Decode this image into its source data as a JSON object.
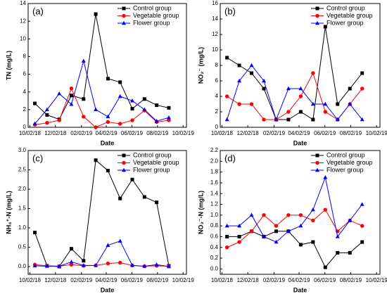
{
  "chart_data": [
    {
      "type": "line",
      "panel_label": "(a)",
      "xlabel": "Date",
      "ylabel": "TN (mg/L)",
      "legend": "upper right",
      "x": [
        "2018-10-14",
        "2018-11-12",
        "2018-12-11",
        "2019-01-09",
        "2019-02-07",
        "2019-03-08",
        "2019-04-06",
        "2019-05-05",
        "2019-06-03",
        "2019-07-02",
        "2019-07-31",
        "2019-08-29"
      ],
      "xlim": [
        "2018-09-28",
        "2019-10-10"
      ],
      "xticks": [
        {
          "value": "2018-10-02",
          "label": "10/02/18"
        },
        {
          "value": "2018-12-02",
          "label": "12/02/18"
        },
        {
          "value": "2019-02-02",
          "label": "02/02/19"
        },
        {
          "value": "2019-04-02",
          "label": "04/02/19"
        },
        {
          "value": "2019-06-02",
          "label": "06/02/19"
        },
        {
          "value": "2019-08-02",
          "label": "08/02/19"
        },
        {
          "value": "2019-10-02",
          "label": "10/02/19"
        }
      ],
      "ylim": [
        0,
        14
      ],
      "yticks": [
        0,
        2,
        4,
        6,
        8,
        10,
        12,
        14
      ],
      "series": [
        {
          "name": "Control group",
          "color": "#000000",
          "marker": "square",
          "values": [
            2.7,
            1.4,
            0.9,
            3.6,
            3.2,
            12.8,
            5.5,
            5.1,
            2.1,
            3.2,
            2.5,
            2.2
          ]
        },
        {
          "name": "Vegetable group",
          "color": "#ff0000",
          "marker": "circle",
          "values": [
            0.3,
            0.5,
            0.8,
            4.4,
            1.2,
            0.0,
            0.6,
            0.4,
            0.8,
            1.9,
            0.6,
            0.8
          ]
        },
        {
          "name": "Flower group",
          "color": "#0000ff",
          "marker": "triangle",
          "values": [
            0.4,
            2.0,
            3.8,
            2.6,
            7.5,
            2.0,
            1.2,
            3.5,
            3.0,
            2.0,
            0.7,
            1.1
          ]
        }
      ]
    },
    {
      "type": "line",
      "panel_label": "(b)",
      "xlabel": "Date",
      "ylabel": "NO₂⁻ (mg/L)",
      "legend": "upper right",
      "x": [
        "2018-10-14",
        "2018-11-12",
        "2018-12-11",
        "2019-01-09",
        "2019-02-07",
        "2019-03-08",
        "2019-04-06",
        "2019-05-05",
        "2019-06-03",
        "2019-07-02",
        "2019-07-31",
        "2019-08-29"
      ],
      "xlim": [
        "2018-09-28",
        "2019-10-10"
      ],
      "xticks": [
        {
          "value": "2018-10-02",
          "label": "10/02/18"
        },
        {
          "value": "2018-12-02",
          "label": "12/02/18"
        },
        {
          "value": "2019-02-02",
          "label": "02/02/19"
        },
        {
          "value": "2019-04-02",
          "label": "04/02/19"
        },
        {
          "value": "2019-06-02",
          "label": "06/02/19"
        },
        {
          "value": "2019-08-02",
          "label": "08/02/19"
        },
        {
          "value": "2019-10-02",
          "label": "10/02/19"
        }
      ],
      "ylim": [
        0,
        16
      ],
      "yticks": [
        0,
        2,
        4,
        6,
        8,
        10,
        12,
        14,
        16
      ],
      "series": [
        {
          "name": "Control group",
          "color": "#000000",
          "marker": "square",
          "values": [
            9,
            8,
            7,
            5,
            1,
            1,
            2,
            1,
            13,
            3,
            5,
            7
          ]
        },
        {
          "name": "Vegetable group",
          "color": "#ff0000",
          "marker": "circle",
          "values": [
            4,
            3,
            3,
            1,
            1,
            2,
            4,
            7,
            2,
            1,
            3,
            5
          ]
        },
        {
          "name": "Flower group",
          "color": "#0000ff",
          "marker": "triangle",
          "values": [
            1,
            6,
            8,
            6,
            1,
            5,
            5,
            3,
            3,
            1,
            3,
            1
          ]
        }
      ]
    },
    {
      "type": "line",
      "panel_label": "(c)",
      "xlabel": "Date",
      "ylabel": "NH₄⁺-N (mg/L)",
      "legend": "upper right",
      "x": [
        "2018-10-14",
        "2018-11-12",
        "2018-12-11",
        "2019-01-09",
        "2019-02-07",
        "2019-03-08",
        "2019-04-06",
        "2019-05-05",
        "2019-06-03",
        "2019-07-02",
        "2019-07-31",
        "2019-08-29"
      ],
      "xlim": [
        "2018-09-28",
        "2019-10-10"
      ],
      "xticks": [
        {
          "value": "2018-10-02",
          "label": "10/02/18"
        },
        {
          "value": "2018-12-02",
          "label": "12/02/18"
        },
        {
          "value": "2019-02-02",
          "label": "02/02/19"
        },
        {
          "value": "2019-04-02",
          "label": "04/02/19"
        },
        {
          "value": "2019-06-02",
          "label": "06/02/19"
        },
        {
          "value": "2019-08-02",
          "label": "08/02/19"
        },
        {
          "value": "2019-10-02",
          "label": "10/02/19"
        }
      ],
      "ylim": [
        -0.2,
        3.0
      ],
      "yticks": [
        {
          "value": 0,
          "label": "0.0"
        },
        0.5,
        {
          "value": 1,
          "label": "1.0"
        },
        1.5,
        {
          "value": 2,
          "label": "2.0"
        },
        2.5,
        {
          "value": 3,
          "label": "3.0"
        }
      ],
      "series": [
        {
          "name": "Control group",
          "color": "#000000",
          "marker": "square",
          "values": [
            0.88,
            0.02,
            0.0,
            0.46,
            0.15,
            2.75,
            2.48,
            1.76,
            2.25,
            1.8,
            1.66,
            0.02
          ]
        },
        {
          "name": "Vegetable group",
          "color": "#ff0000",
          "marker": "circle",
          "values": [
            0.05,
            0.02,
            0.01,
            0.05,
            0.02,
            0.03,
            0.08,
            0.1,
            0.03,
            0.01,
            0.02,
            0.01
          ]
        },
        {
          "name": "Flower group",
          "color": "#0000ff",
          "marker": "triangle",
          "values": [
            0.02,
            0.01,
            0.01,
            0.12,
            0.03,
            0.03,
            0.55,
            0.66,
            0.03,
            0.01,
            0.05,
            0.0
          ]
        }
      ]
    },
    {
      "type": "line",
      "panel_label": "(d)",
      "xlabel": "Date",
      "ylabel": "NO₃⁻-N (mg/L)",
      "legend": "upper right",
      "x": [
        "2018-10-14",
        "2018-11-12",
        "2018-12-11",
        "2019-01-09",
        "2019-02-07",
        "2019-03-08",
        "2019-04-06",
        "2019-05-05",
        "2019-06-03",
        "2019-07-02",
        "2019-07-31",
        "2019-08-29"
      ],
      "xlim": [
        "2018-09-28",
        "2019-10-10"
      ],
      "xticks": [
        {
          "value": "2018-10-02",
          "label": "10/02/18"
        },
        {
          "value": "2018-12-02",
          "label": "12/02/18"
        },
        {
          "value": "2019-02-02",
          "label": "02/02/19"
        },
        {
          "value": "2019-04-02",
          "label": "04/02/19"
        },
        {
          "value": "2019-06-02",
          "label": "06/02/19"
        },
        {
          "value": "2019-08-02",
          "label": "08/02/19"
        },
        {
          "value": "2019-10-02",
          "label": "10/02/19"
        }
      ],
      "ylim": [
        -0.1,
        2.2
      ],
      "yticks": [
        {
          "value": 0,
          "label": "0.0"
        },
        0.2,
        0.4,
        0.6,
        0.8,
        {
          "value": 1,
          "label": "1.0"
        },
        1.2,
        1.4,
        1.6,
        1.8,
        {
          "value": 2,
          "label": "2.0"
        },
        2.2
      ],
      "series": [
        {
          "name": "Control group",
          "color": "#000000",
          "marker": "square",
          "values": [
            0.6,
            0.6,
            0.7,
            0.6,
            0.7,
            0.7,
            0.45,
            0.5,
            0.03,
            0.3,
            0.3,
            0.5
          ]
        },
        {
          "name": "Vegetable group",
          "color": "#ff0000",
          "marker": "circle",
          "values": [
            0.4,
            0.5,
            0.7,
            1.0,
            0.8,
            1.0,
            1.0,
            0.9,
            1.1,
            0.7,
            0.9,
            0.8
          ]
        },
        {
          "name": "Flower group",
          "color": "#0000ff",
          "marker": "triangle",
          "values": [
            0.8,
            0.8,
            1.0,
            0.6,
            0.5,
            0.7,
            0.8,
            1.1,
            1.7,
            0.6,
            0.9,
            1.2
          ]
        }
      ]
    }
  ]
}
